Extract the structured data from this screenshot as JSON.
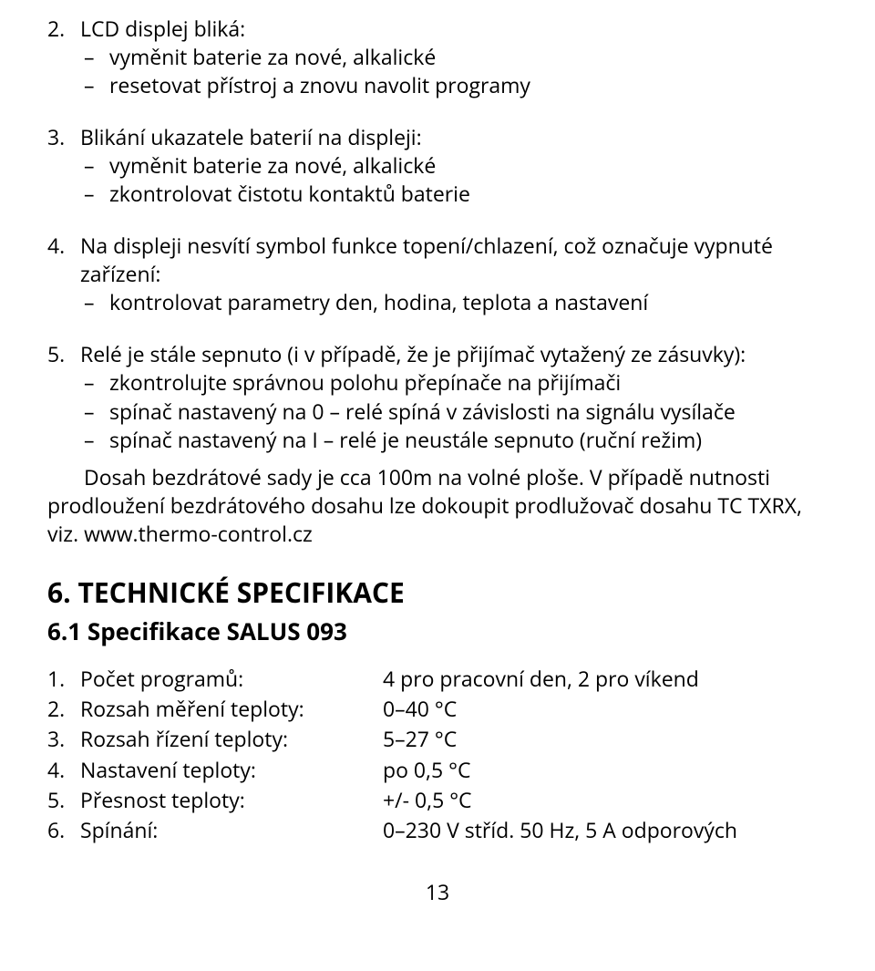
{
  "items": [
    {
      "num": "2.",
      "title": "LCD displej bliká:",
      "subs": [
        "vyměnit baterie za nové, alkalické",
        "resetovat přístroj a znovu navolit programy"
      ]
    },
    {
      "num": "3.",
      "title": "Blikání ukazatele baterií na displeji:",
      "subs": [
        "vyměnit baterie za nové, alkalické",
        "zkontrolovat čistotu kontaktů baterie"
      ]
    },
    {
      "num": "4.",
      "title": "Na displeji nesvítí symbol funkce topení/chlazení, což označuje vypnuté zařízení:",
      "subs": [
        "kontrolovat parametry den, hodina, teplota a nastavení"
      ]
    },
    {
      "num": "5.",
      "title": "Relé je stále sepnuto (i v případě, že je přijímač vytažený ze zásuvky):",
      "subs": [
        "zkontrolujte správnou polohu přepínače na přijímači",
        "spínač nastavený na 0 – relé spíná v závislosti na signálu vysílače",
        "spínač nastavený na I – relé je neustále sepnuto (ruční režim)"
      ]
    }
  ],
  "paragraph": "Dosah bezdrátové sady je cca 100m na volné ploše. V případě nutnosti prodloužení bezdrátového dosahu lze dokoupit prodlužovač dosahu TC TXRX, viz. www.thermo-control.cz",
  "heading1": "6. TECHNICKÉ SPECIFIKACE",
  "heading2": "6.1 Specifikace SALUS 093",
  "specs": [
    {
      "num": "1.",
      "label": "Počet programů:",
      "value": "4 pro pracovní den, 2 pro víkend"
    },
    {
      "num": "2.",
      "label": "Rozsah měření teploty:",
      "value": "0–40 °C"
    },
    {
      "num": "3.",
      "label": "Rozsah řízení teploty:",
      "value": "5–27 °C"
    },
    {
      "num": "4.",
      "label": "Nastavení teploty:",
      "value": "po 0,5 °C"
    },
    {
      "num": "5.",
      "label": "Přesnost teploty:",
      "value": "+/- 0,5 °C"
    },
    {
      "num": "6.",
      "label": "Spínání:",
      "value": "0–230 V stříd. 50 Hz, 5 A odporových"
    }
  ],
  "dash": "–",
  "pageNumber": "13"
}
